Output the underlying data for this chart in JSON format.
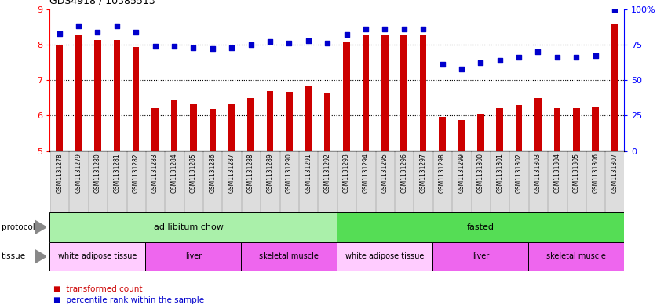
{
  "title": "GDS4918 / 10385513",
  "samples": [
    "GSM1131278",
    "GSM1131279",
    "GSM1131280",
    "GSM1131281",
    "GSM1131282",
    "GSM1131283",
    "GSM1131284",
    "GSM1131285",
    "GSM1131286",
    "GSM1131287",
    "GSM1131288",
    "GSM1131289",
    "GSM1131290",
    "GSM1131291",
    "GSM1131292",
    "GSM1131293",
    "GSM1131294",
    "GSM1131295",
    "GSM1131296",
    "GSM1131297",
    "GSM1131298",
    "GSM1131299",
    "GSM1131300",
    "GSM1131301",
    "GSM1131302",
    "GSM1131303",
    "GSM1131304",
    "GSM1131305",
    "GSM1131306",
    "GSM1131307"
  ],
  "bar_values": [
    7.97,
    8.27,
    8.14,
    8.14,
    7.93,
    6.21,
    6.43,
    6.32,
    6.19,
    6.31,
    6.5,
    6.69,
    6.65,
    6.82,
    6.62,
    8.06,
    8.27,
    8.27,
    8.27,
    8.27,
    5.96,
    5.87,
    6.02,
    6.2,
    6.29,
    6.49,
    6.21,
    6.21,
    6.22,
    8.57
  ],
  "dot_values": [
    83,
    88,
    84,
    88,
    84,
    74,
    74,
    73,
    72,
    73,
    75,
    77,
    76,
    78,
    76,
    82,
    86,
    86,
    86,
    86,
    61,
    58,
    62,
    64,
    66,
    70,
    66,
    66,
    67,
    100
  ],
  "ylim_left": [
    5,
    9
  ],
  "ylim_right": [
    0,
    100
  ],
  "yticks_left": [
    5,
    6,
    7,
    8,
    9
  ],
  "yticks_right": [
    0,
    25,
    50,
    75,
    100
  ],
  "ytick_labels_right": [
    "0",
    "25",
    "50",
    "75",
    "100%"
  ],
  "bar_color": "#cc0000",
  "dot_color": "#0000cc",
  "protocol_labels": [
    "ad libitum chow",
    "fasted"
  ],
  "protocol_color_light": "#aaf0aa",
  "protocol_color_dark": "#55dd55",
  "protocol_split": 15,
  "tissue_segments": [
    {
      "label": "white adipose tissue",
      "start": 0,
      "end": 4,
      "color": "#ffccff"
    },
    {
      "label": "liver",
      "start": 5,
      "end": 9,
      "color": "#ee66ee"
    },
    {
      "label": "skeletal muscle",
      "start": 10,
      "end": 14,
      "color": "#ee66ee"
    },
    {
      "label": "white adipose tissue",
      "start": 15,
      "end": 19,
      "color": "#ffccff"
    },
    {
      "label": "liver",
      "start": 20,
      "end": 24,
      "color": "#ee66ee"
    },
    {
      "label": "skeletal muscle",
      "start": 25,
      "end": 29,
      "color": "#ee66ee"
    }
  ],
  "legend_bar_label": "transformed count",
  "legend_dot_label": "percentile rank within the sample",
  "xtick_bg_color": "#dddddd"
}
